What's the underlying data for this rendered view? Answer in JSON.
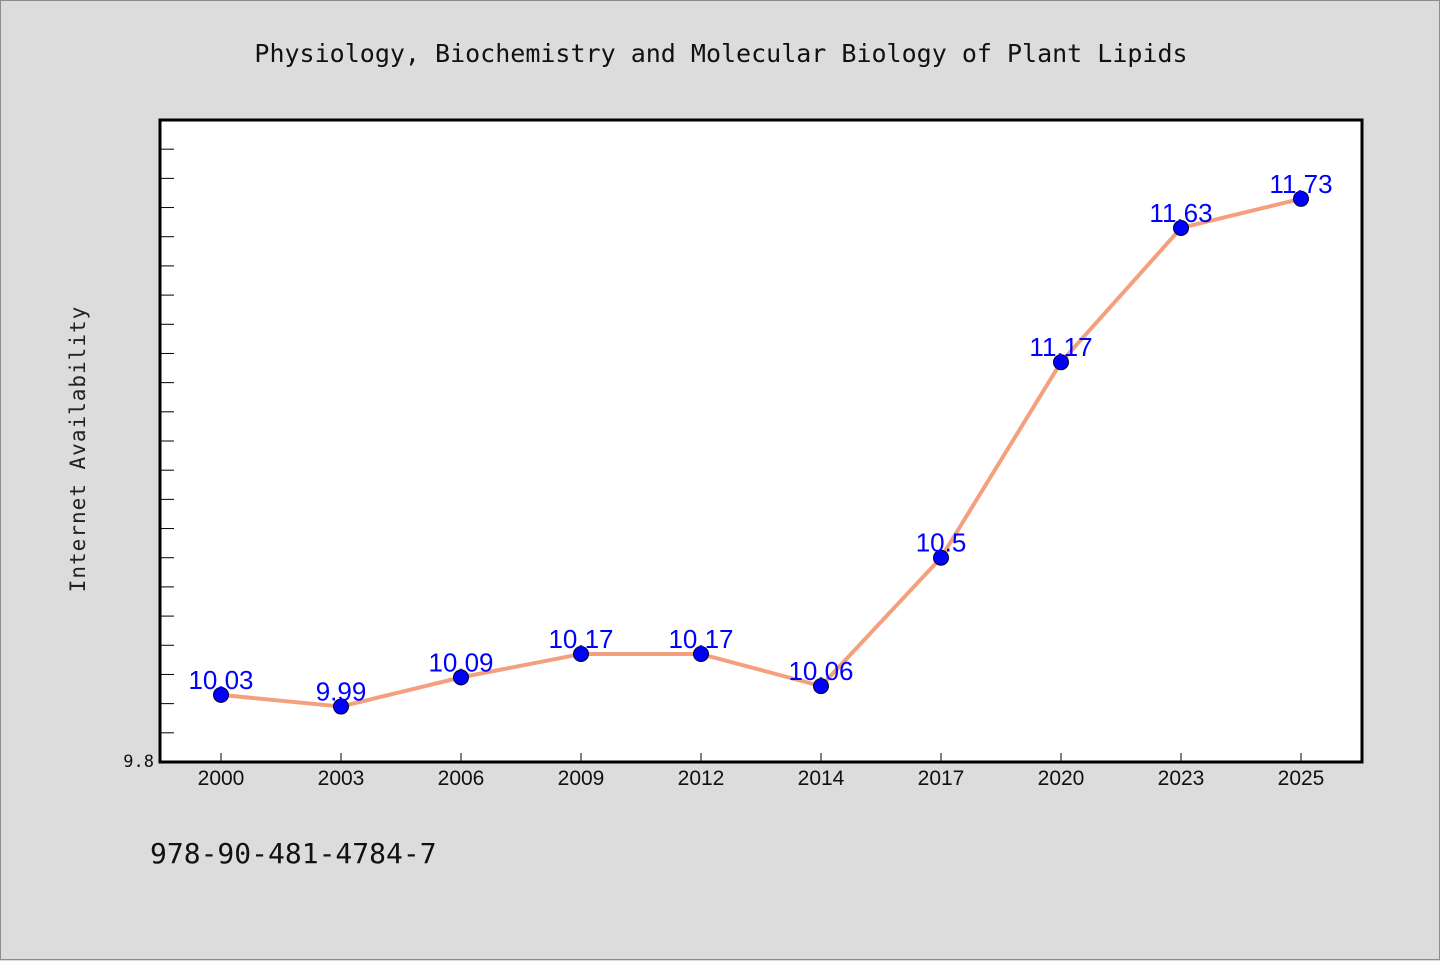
{
  "chart_data": {
    "type": "line",
    "title": "Physiology, Biochemistry and Molecular Biology of Plant Lipids",
    "xlabel": "",
    "ylabel": "Internet Availability",
    "categories": [
      "2000",
      "2003",
      "2006",
      "2009",
      "2012",
      "2014",
      "2017",
      "2020",
      "2023",
      "2025"
    ],
    "series": [
      {
        "values": [
          10.03,
          9.99,
          10.09,
          10.17,
          10.17,
          10.06,
          10.5,
          11.17,
          11.63,
          11.73
        ],
        "labels": [
          "10.03",
          "9.99",
          "10.09",
          "10.17",
          "10.17",
          "10.06",
          "10.5",
          "11.17",
          "11.63",
          "11.73"
        ]
      }
    ],
    "ylim": [
      9.8,
      12.0
    ],
    "y_min_tick_label": "9.8",
    "y_minor_tick_step": 0.1,
    "grid": false,
    "line_color": "#f4a07f",
    "marker_color": "#0000ff",
    "label_color": "#0000ff",
    "plot_background": "#ffffff",
    "page_background": "#dcdcdc"
  },
  "footer": {
    "isbn": "978-90-481-4784-7"
  }
}
